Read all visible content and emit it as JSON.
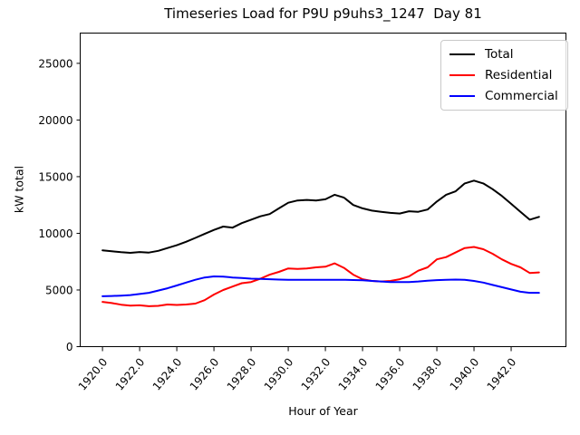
{
  "figure": {
    "background": "#ffffff"
  },
  "chart_data": {
    "type": "line",
    "title": "Timeseries Load for P9U p9uhs3_1247  Day 81",
    "xlabel": "Hour of Year",
    "ylabel": "kW total",
    "xlim": [
      1918.8,
      1944.95
    ],
    "ylim": [
      0,
      27670
    ],
    "grid": false,
    "line_width": 2,
    "legend": {
      "position": "upper right",
      "entries": [
        "Total",
        "Residential",
        "Commercial"
      ]
    },
    "x_ticks": {
      "values": [
        1920,
        1922,
        1924,
        1926,
        1928,
        1930,
        1932,
        1934,
        1936,
        1938,
        1940,
        1942
      ],
      "labels": [
        "1920.0",
        "1922.0",
        "1924.0",
        "1926.0",
        "1928.0",
        "1930.0",
        "1932.0",
        "1934.0",
        "1936.0",
        "1938.0",
        "1940.0",
        "1942.0"
      ],
      "rotation_deg": -50
    },
    "y_ticks": {
      "values": [
        0,
        5000,
        10000,
        15000,
        20000,
        25000
      ],
      "labels": [
        "0",
        "5000",
        "10000",
        "15000",
        "20000",
        "25000"
      ]
    },
    "x": [
      1920.0,
      1920.5,
      1921.0,
      1921.5,
      1922.0,
      1922.5,
      1923.0,
      1923.5,
      1924.0,
      1924.5,
      1925.0,
      1925.5,
      1926.0,
      1926.5,
      1927.0,
      1927.5,
      1928.0,
      1928.5,
      1929.0,
      1929.5,
      1930.0,
      1930.5,
      1931.0,
      1931.5,
      1932.0,
      1932.5,
      1933.0,
      1933.5,
      1934.0,
      1934.5,
      1935.0,
      1935.5,
      1936.0,
      1936.5,
      1937.0,
      1937.5,
      1938.0,
      1938.5,
      1939.0,
      1939.5,
      1940.0,
      1940.5,
      1941.0,
      1941.5,
      1942.0,
      1942.5,
      1943.0,
      1943.5
    ],
    "series": [
      {
        "name": "Total",
        "color": "#000000",
        "values": [
          8500,
          8420,
          8330,
          8280,
          8350,
          8300,
          8450,
          8700,
          8950,
          9250,
          9600,
          9950,
          10300,
          10600,
          10500,
          10900,
          11200,
          11500,
          11700,
          12200,
          12700,
          12900,
          12950,
          12900,
          13000,
          13400,
          13150,
          12500,
          12200,
          12000,
          11900,
          11800,
          11750,
          11950,
          11900,
          12100,
          12800,
          13400,
          13700,
          14400,
          14650,
          14400,
          13900,
          13300,
          12600,
          11900,
          11200,
          11450
        ]
      },
      {
        "name": "Residential",
        "color": "#ff0000",
        "values": [
          3950,
          3850,
          3700,
          3620,
          3650,
          3570,
          3600,
          3720,
          3680,
          3720,
          3800,
          4100,
          4600,
          5000,
          5300,
          5600,
          5700,
          6000,
          6350,
          6600,
          6900,
          6850,
          6900,
          7000,
          7050,
          7350,
          6950,
          6350,
          5950,
          5800,
          5750,
          5800,
          5950,
          6200,
          6700,
          7000,
          7700,
          7900,
          8300,
          8700,
          8800,
          8600,
          8200,
          7700,
          7300,
          7000,
          6500,
          6550
        ]
      },
      {
        "name": "Commercial",
        "color": "#0000ff",
        "values": [
          4450,
          4470,
          4500,
          4550,
          4650,
          4750,
          4950,
          5150,
          5400,
          5650,
          5900,
          6100,
          6200,
          6180,
          6100,
          6050,
          6000,
          5980,
          5950,
          5920,
          5900,
          5900,
          5900,
          5900,
          5900,
          5900,
          5900,
          5880,
          5850,
          5800,
          5750,
          5700,
          5700,
          5700,
          5750,
          5820,
          5870,
          5900,
          5920,
          5900,
          5800,
          5650,
          5450,
          5250,
          5050,
          4850,
          4750,
          4750
        ]
      }
    ]
  }
}
